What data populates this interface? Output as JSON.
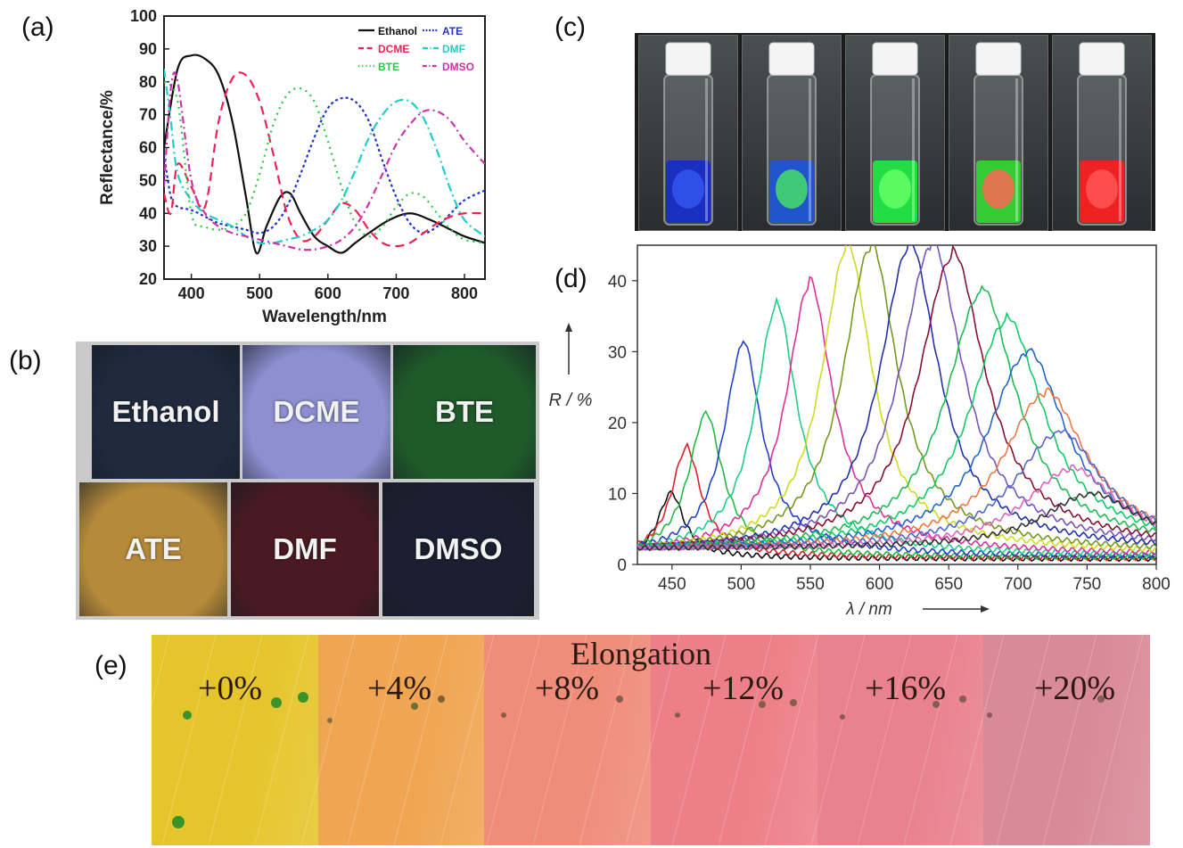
{
  "panels": {
    "a": "(a)",
    "b": "(b)",
    "c": "(c)",
    "d": "(d)",
    "e": "(e)"
  },
  "chart_data": [
    {
      "type": "line",
      "panel": "a",
      "xlabel": "Wavelength/nm",
      "ylabel": "Reflectance/%",
      "xlim": [
        360,
        830
      ],
      "ylim": [
        20,
        100
      ],
      "xticks": [
        400,
        500,
        600,
        700,
        800
      ],
      "yticks": [
        20,
        30,
        40,
        50,
        60,
        70,
        80,
        90,
        100
      ],
      "legend_position": "top-right",
      "series": [
        {
          "name": "Ethanol",
          "color": "#111111",
          "dash": "solid",
          "x": [
            360,
            380,
            400,
            420,
            440,
            460,
            480,
            495,
            510,
            530,
            545,
            560,
            580,
            600,
            620,
            640,
            660,
            690,
            720,
            750,
            780,
            800,
            830
          ],
          "y": [
            60,
            84,
            88,
            87,
            82,
            68,
            45,
            28,
            36,
            45,
            46,
            40,
            33,
            30,
            28,
            31,
            34,
            38,
            40,
            38,
            35,
            33,
            31
          ]
        },
        {
          "name": "ATE",
          "color": "#2233cc",
          "dash": "3,3",
          "x": [
            360,
            370,
            380,
            400,
            420,
            440,
            460,
            480,
            500,
            520,
            540,
            560,
            580,
            600,
            620,
            640,
            660,
            680,
            700,
            720,
            740,
            760,
            780,
            800,
            830
          ],
          "y": [
            58,
            45,
            42,
            41,
            39,
            37,
            36,
            35,
            34,
            36,
            42,
            52,
            63,
            72,
            75,
            74,
            68,
            56,
            45,
            37,
            34,
            36,
            40,
            44,
            47
          ]
        },
        {
          "name": "DCME",
          "color": "#ee2255",
          "dash": "10,6",
          "x": [
            360,
            370,
            380,
            400,
            420,
            440,
            460,
            480,
            500,
            520,
            540,
            560,
            580,
            600,
            620,
            640,
            660,
            680,
            700,
            720,
            740,
            760,
            780,
            800,
            830
          ],
          "y": [
            46,
            40,
            55,
            48,
            42,
            68,
            81,
            82,
            74,
            58,
            40,
            32,
            33,
            38,
            43,
            41,
            35,
            31,
            30,
            31,
            34,
            37,
            39,
            40,
            40
          ]
        },
        {
          "name": "DMF",
          "color": "#22cccc",
          "dash": "10,4,2,4",
          "x": [
            360,
            370,
            380,
            400,
            420,
            440,
            460,
            480,
            500,
            520,
            540,
            560,
            580,
            600,
            620,
            640,
            660,
            680,
            700,
            720,
            740,
            760,
            780,
            800,
            830
          ],
          "y": [
            84,
            68,
            52,
            44,
            40,
            38,
            36,
            33,
            31,
            31,
            32,
            33,
            35,
            38,
            44,
            53,
            63,
            70,
            74,
            74,
            69,
            59,
            47,
            38,
            33
          ]
        },
        {
          "name": "BTE",
          "color": "#22cc44",
          "dash": "2,5",
          "x": [
            360,
            380,
            400,
            420,
            440,
            460,
            480,
            500,
            520,
            540,
            560,
            580,
            600,
            620,
            640,
            660,
            680,
            700,
            720,
            740,
            760,
            780,
            800,
            830
          ],
          "y": [
            80,
            74,
            40,
            36,
            35,
            36,
            40,
            52,
            67,
            76,
            78,
            74,
            62,
            48,
            37,
            33,
            36,
            42,
            46,
            45,
            40,
            35,
            32,
            31
          ]
        },
        {
          "name": "DMSO",
          "color": "#cc33aa",
          "dash": "8,4,2,4",
          "x": [
            360,
            370,
            380,
            400,
            420,
            440,
            460,
            480,
            500,
            520,
            540,
            560,
            580,
            600,
            620,
            640,
            660,
            680,
            700,
            720,
            740,
            760,
            780,
            800,
            830
          ],
          "y": [
            48,
            78,
            80,
            50,
            40,
            36,
            34,
            33,
            32,
            31,
            30,
            29,
            29,
            30,
            32,
            36,
            43,
            52,
            61,
            67,
            71,
            71,
            68,
            62,
            55
          ]
        }
      ]
    },
    {
      "type": "line",
      "panel": "d",
      "xlabel": "λ / nm",
      "ylabel": "R / %",
      "xlim": [
        425,
        800
      ],
      "ylim": [
        0,
        45
      ],
      "xticks": [
        450,
        500,
        550,
        600,
        650,
        700,
        750,
        800
      ],
      "yticks": [
        0,
        10,
        20,
        30,
        40
      ],
      "grid": false,
      "series": [
        {
          "peak": 449,
          "height": 9,
          "color": "#111111"
        },
        {
          "peak": 460,
          "height": 15,
          "color": "#e0202a"
        },
        {
          "peak": 474,
          "height": 19.5,
          "color": "#22bb44"
        },
        {
          "peak": 501,
          "height": 29,
          "color": "#2244cc"
        },
        {
          "peak": 525,
          "height": 34,
          "color": "#22cc88"
        },
        {
          "peak": 549,
          "height": 37,
          "color": "#dd3399"
        },
        {
          "peak": 576,
          "height": 42,
          "color": "#ccdd22"
        },
        {
          "peak": 593,
          "height": 42,
          "color": "#779922"
        },
        {
          "peak": 621,
          "height": 42,
          "color": "#2233aa"
        },
        {
          "peak": 637,
          "height": 42,
          "color": "#7755bb"
        },
        {
          "peak": 652,
          "height": 40.5,
          "color": "#881133"
        },
        {
          "peak": 673,
          "height": 35.5,
          "color": "#22bb55"
        },
        {
          "peak": 691,
          "height": 31.5,
          "color": "#11cc66"
        },
        {
          "peak": 706,
          "height": 27,
          "color": "#2266cc"
        },
        {
          "peak": 719,
          "height": 21.5,
          "color": "#ee7744"
        },
        {
          "peak": 729,
          "height": 16,
          "color": "#5566cc"
        },
        {
          "peak": 738,
          "height": 11,
          "color": "#dd66bb"
        },
        {
          "peak": 752,
          "height": 7.5,
          "color": "#333333"
        }
      ]
    }
  ],
  "panel_b": {
    "tiles": [
      {
        "label": "Ethanol",
        "color": "#1f2a3e"
      },
      {
        "label": "DCME",
        "color": "#8d8fd0"
      },
      {
        "label": "BTE",
        "color": "#1f5a2a"
      },
      {
        "label": "ATE",
        "color": "#b58a3a"
      },
      {
        "label": "DMF",
        "color": "#4a1a22"
      },
      {
        "label": "DMSO",
        "color": "#1a2030"
      }
    ]
  },
  "panel_c": {
    "vials": [
      {
        "liquid": "#1a2ec0",
        "center": "#3355ee"
      },
      {
        "liquid": "#2255cc",
        "center": "#44dd66"
      },
      {
        "liquid": "#22dd44",
        "center": "#66ff66"
      },
      {
        "liquid": "#33cc33",
        "center": "#ff6655"
      },
      {
        "liquid": "#ee2222",
        "center": "#ff5555"
      }
    ]
  },
  "panel_e": {
    "title": "Elongation",
    "labels": [
      "+0%",
      "+4%",
      "+8%",
      "+12%",
      "+16%",
      "+20%"
    ],
    "colors": [
      "#e6c52c",
      "#f0a552",
      "#ef8c7a",
      "#ed7f88",
      "#e9818e",
      "#d98a98"
    ]
  }
}
